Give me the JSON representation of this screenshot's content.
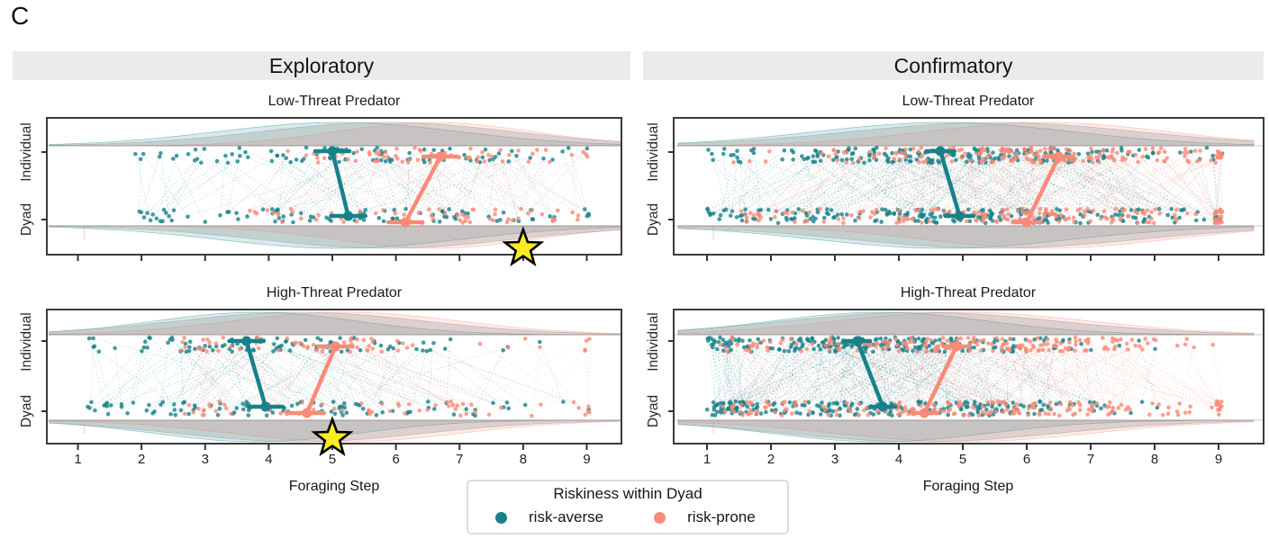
{
  "panel_label": "C",
  "headers": {
    "left": "Exploratory",
    "right": "Confirmatory"
  },
  "row_titles": {
    "low": "Low-Threat Predator",
    "high": "High-Threat Predator"
  },
  "y_axis": {
    "labels": [
      "Individual",
      "Dyad"
    ]
  },
  "x_axis": {
    "label": "Foraging Step",
    "ticks": [
      "1",
      "2",
      "3",
      "4",
      "5",
      "6",
      "7",
      "8",
      "9"
    ]
  },
  "legend": {
    "title": "Riskiness within Dyad",
    "items": [
      {
        "label": "risk-averse"
      },
      {
        "label": "risk-prone"
      }
    ]
  },
  "colors": {
    "risk_averse": "#17818a",
    "risk_prone": "#f98a76",
    "header_bg": "#ebebeb",
    "frame": "#3b3b3b",
    "ref_line": "#cccccc",
    "violin_gray": "#8c8c8c",
    "star_fill": "#fbec1f",
    "star_stroke": "#000000"
  },
  "chart_data": {
    "type": "raincloud",
    "facets": {
      "columns": [
        "Exploratory",
        "Confirmatory"
      ],
      "rows": [
        "Low-Threat Predator",
        "High-Threat Predator"
      ]
    },
    "x": {
      "label": "Foraging Step",
      "ticks": [
        1,
        2,
        3,
        4,
        5,
        6,
        7,
        8,
        9
      ],
      "range": [
        0.55,
        9.55
      ],
      "max_observed": 9.0
    },
    "y_categories": [
      "Individual",
      "Dyad"
    ],
    "series": [
      {
        "name": "risk-averse",
        "color": "#17818a"
      },
      {
        "name": "risk-prone",
        "color": "#f98a76"
      }
    ],
    "panels": [
      {
        "column": "Exploratory",
        "row": "Low-Threat Predator",
        "mean_foraging_step": {
          "risk_averse": {
            "individual": 5.0,
            "dyad": 5.25
          },
          "risk_prone": {
            "individual": 6.7,
            "dyad": 6.15
          }
        },
        "ci_halfwidth": 0.27,
        "star_x": 8,
        "distributions": {
          "risk_averse": {
            "mu": 5.1,
            "sigma": 1.9,
            "min": 1.9,
            "n_pairs": 90
          },
          "risk_prone": {
            "mu": 6.6,
            "sigma": 1.55,
            "min": 3.6,
            "n_pairs": 60
          }
        }
      },
      {
        "column": "Confirmatory",
        "row": "Low-Threat Predator",
        "mean_foraging_step": {
          "risk_averse": {
            "individual": 4.65,
            "dyad": 4.95
          },
          "risk_prone": {
            "individual": 6.5,
            "dyad": 6.0
          }
        },
        "ci_halfwidth": 0.22,
        "star_x": null,
        "distributions": {
          "risk_averse": {
            "mu": 4.7,
            "sigma": 2.0,
            "min": 1.0,
            "n_pairs": 210
          },
          "risk_prone": {
            "mu": 6.3,
            "sigma": 1.9,
            "min": 1.4,
            "n_pairs": 180
          }
        }
      },
      {
        "column": "Exploratory",
        "row": "High-Threat Predator",
        "mean_foraging_step": {
          "risk_averse": {
            "individual": 3.65,
            "dyad": 3.95
          },
          "risk_prone": {
            "individual": 5.05,
            "dyad": 4.6
          }
        },
        "ci_halfwidth": 0.27,
        "star_x": 5,
        "distributions": {
          "risk_averse": {
            "mu": 3.8,
            "sigma": 1.6,
            "min": 1.1,
            "n_pairs": 100
          },
          "risk_prone": {
            "mu": 5.2,
            "sigma": 1.8,
            "min": 2.6,
            "n_pairs": 65
          }
        }
      },
      {
        "column": "Confirmatory",
        "row": "High-Threat Predator",
        "mean_foraging_step": {
          "risk_averse": {
            "individual": 3.35,
            "dyad": 3.75
          },
          "risk_prone": {
            "individual": 4.9,
            "dyad": 4.4
          }
        },
        "ci_halfwidth": 0.2,
        "star_x": null,
        "distributions": {
          "risk_averse": {
            "mu": 3.7,
            "sigma": 1.7,
            "min": 1.0,
            "n_pairs": 225
          },
          "risk_prone": {
            "mu": 5.0,
            "sigma": 2.0,
            "min": 1.2,
            "n_pairs": 190
          }
        }
      }
    ]
  }
}
